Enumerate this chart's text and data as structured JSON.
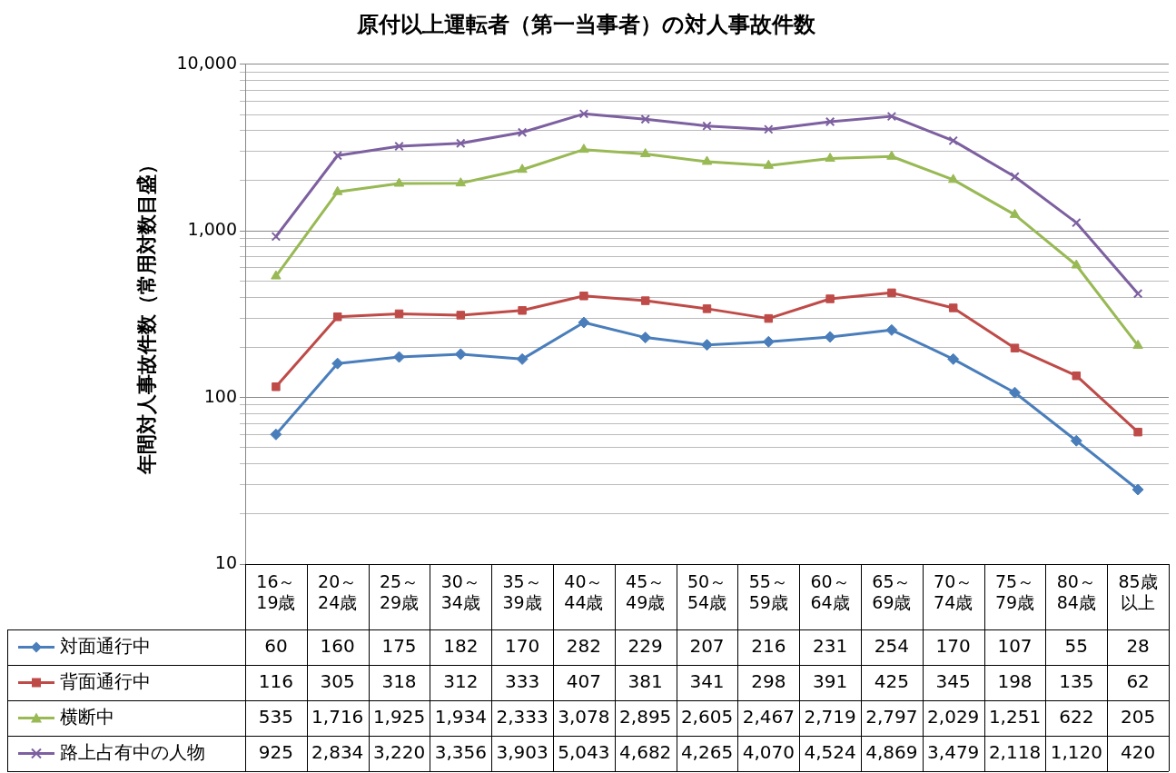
{
  "chart_data": {
    "type": "line",
    "title": "原付以上運転者（第一当事者）の対人事故件数",
    "ylabel": "年間対人事故件数（常用対数目盛）",
    "categories": [
      "16～19歳",
      "20～24歳",
      "25～29歳",
      "30～34歳",
      "35～39歳",
      "40～44歳",
      "45～49歳",
      "50～54歳",
      "55～59歳",
      "60～64歳",
      "65～69歳",
      "70～74歳",
      "75～79歳",
      "80～84歳",
      "85歳以上"
    ],
    "log": true,
    "grid": "y",
    "legend": "bottom",
    "line_style": "solid",
    "ylim": [
      10,
      10000
    ],
    "yticks": [
      10,
      {
        "value": 20,
        "label": null
      },
      {
        "value": 30,
        "label": null
      },
      {
        "value": 40,
        "label": null
      },
      {
        "value": 50,
        "label": null
      },
      {
        "value": 60,
        "label": null
      },
      {
        "value": 70,
        "label": null
      },
      {
        "value": 80,
        "label": null
      },
      {
        "value": 90,
        "label": null
      },
      100,
      {
        "value": 200,
        "label": null
      },
      {
        "value": 300,
        "label": null
      },
      {
        "value": 400,
        "label": null
      },
      {
        "value": 500,
        "label": null
      },
      {
        "value": 600,
        "label": null
      },
      {
        "value": 700,
        "label": null
      },
      {
        "value": 800,
        "label": null
      },
      {
        "value": 900,
        "label": null
      },
      {
        "value": 1000,
        "label": "1,000"
      },
      {
        "value": 2000,
        "label": null
      },
      {
        "value": 3000,
        "label": null
      },
      {
        "value": 4000,
        "label": null
      },
      {
        "value": 5000,
        "label": null
      },
      {
        "value": 6000,
        "label": null
      },
      {
        "value": 7000,
        "label": null
      },
      {
        "value": 8000,
        "label": null
      },
      {
        "value": 9000,
        "label": null
      },
      {
        "value": 10000,
        "label": "10,000"
      }
    ],
    "series": [
      {
        "name": "対面通行中",
        "color": "#4a7ebb",
        "marker": "diamond",
        "values": [
          60,
          160,
          175,
          182,
          170,
          282,
          229,
          207,
          216,
          231,
          254,
          170,
          107,
          55,
          28
        ],
        "value_labels": [
          "60",
          "160",
          "175",
          "182",
          "170",
          "282",
          "229",
          "207",
          "216",
          "231",
          "254",
          "170",
          "107",
          "55",
          "28"
        ]
      },
      {
        "name": "背面通行中",
        "color": "#be4b48",
        "marker": "square",
        "values": [
          116,
          305,
          318,
          312,
          333,
          407,
          381,
          341,
          298,
          391,
          425,
          345,
          198,
          135,
          62
        ],
        "value_labels": [
          "116",
          "305",
          "318",
          "312",
          "333",
          "407",
          "381",
          "341",
          "298",
          "391",
          "425",
          "345",
          "198",
          "135",
          "62"
        ]
      },
      {
        "name": "横断中",
        "color": "#98b954",
        "marker": "triangle",
        "values": [
          535,
          1716,
          1925,
          1934,
          2333,
          3078,
          2895,
          2605,
          2467,
          2719,
          2797,
          2029,
          1251,
          622,
          205
        ],
        "value_labels": [
          "535",
          "1,716",
          "1,925",
          "1,934",
          "2,333",
          "3,078",
          "2,895",
          "2,605",
          "2,467",
          "2,719",
          "2,797",
          "2,029",
          "1,251",
          "622",
          "205"
        ]
      },
      {
        "name": "路上占有中の人物",
        "color": "#7d60a0",
        "marker": "cross",
        "values": [
          925,
          2834,
          3220,
          3356,
          3903,
          5043,
          4682,
          4265,
          4070,
          4524,
          4869,
          3479,
          2118,
          1120,
          420
        ],
        "value_labels": [
          "925",
          "2,834",
          "3,220",
          "3,356",
          "3,903",
          "5,043",
          "4,682",
          "4,265",
          "4,070",
          "4,524",
          "4,869",
          "3,479",
          "2,118",
          "1,120",
          "420"
        ]
      }
    ]
  }
}
